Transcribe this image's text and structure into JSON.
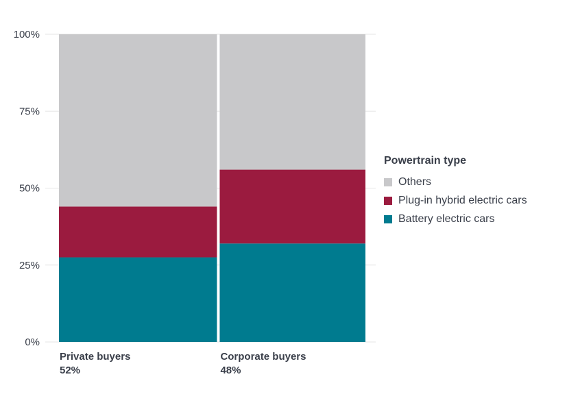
{
  "chart_data": {
    "type": "bar",
    "subtype": "marimekko (variable-width 100% stacked)",
    "categories": [
      "Private buyers",
      "Corporate buyers"
    ],
    "category_shares": [
      "52%",
      "48%"
    ],
    "category_share_values": [
      52,
      48
    ],
    "series": [
      {
        "name": "Battery electric cars",
        "values": [
          27.5,
          32
        ],
        "color": "#007b8f"
      },
      {
        "name": "Plug-in hybrid electric cars",
        "values": [
          16.5,
          24
        ],
        "color": "#9b1b3f"
      },
      {
        "name": "Others",
        "values": [
          56,
          44
        ],
        "color": "#c8c8ca"
      }
    ],
    "yticks": [
      "0%",
      "25%",
      "50%",
      "75%",
      "100%"
    ],
    "ytick_values": [
      0,
      25,
      50,
      75,
      100
    ],
    "ylim": [
      0,
      100
    ],
    "grid": true,
    "legend": {
      "title": "Powertrain type",
      "placement": "right",
      "order": [
        "Others",
        "Plug-in hybrid electric cars",
        "Battery electric cars"
      ]
    }
  }
}
